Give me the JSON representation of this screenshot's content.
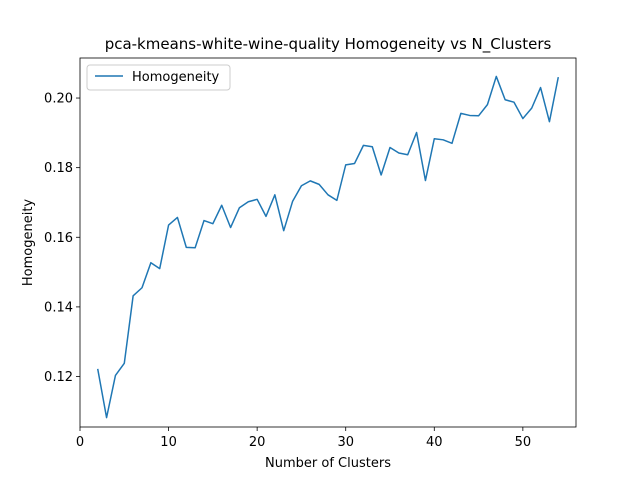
{
  "chart_data": {
    "type": "line",
    "title": "pca-kmeans-white-wine-quality Homogeneity vs N_Clusters",
    "xlabel": "Number of Clusters",
    "ylabel": "Homogeneity",
    "xlim": [
      0,
      56
    ],
    "ylim": [
      0.1055,
      0.2115
    ],
    "xticks": [
      0,
      10,
      20,
      30,
      40,
      50
    ],
    "yticks": [
      0.12,
      0.14,
      0.16,
      0.18,
      0.2
    ],
    "ytick_labels": [
      "0.12",
      "0.14",
      "0.16",
      "0.18",
      "0.20"
    ],
    "grid": false,
    "legend_position": "upper-left",
    "series": [
      {
        "name": "Homogeneity",
        "color": "#1f77b4",
        "x": [
          2,
          3,
          4,
          5,
          6,
          7,
          8,
          9,
          10,
          11,
          12,
          13,
          14,
          15,
          16,
          17,
          18,
          19,
          20,
          21,
          22,
          23,
          24,
          25,
          26,
          27,
          28,
          29,
          30,
          31,
          32,
          33,
          34,
          35,
          36,
          37,
          38,
          39,
          40,
          41,
          42,
          43,
          44,
          45,
          46,
          47,
          48,
          49,
          50,
          51,
          52,
          53,
          54
        ],
        "values": [
          0.1222,
          0.1082,
          0.1203,
          0.1238,
          0.1432,
          0.1455,
          0.1527,
          0.151,
          0.1635,
          0.1657,
          0.1571,
          0.157,
          0.1648,
          0.1639,
          0.1692,
          0.1628,
          0.1685,
          0.1702,
          0.1709,
          0.166,
          0.1722,
          0.1619,
          0.1703,
          0.1748,
          0.1762,
          0.1752,
          0.1722,
          0.1706,
          0.1808,
          0.1812,
          0.1864,
          0.186,
          0.1779,
          0.1858,
          0.1842,
          0.1837,
          0.1901,
          0.1763,
          0.1883,
          0.188,
          0.187,
          0.1956,
          0.195,
          0.1949,
          0.1981,
          0.2062,
          0.1995,
          0.1988,
          0.1941,
          0.1971,
          0.203,
          0.1932,
          0.206
        ]
      }
    ]
  }
}
